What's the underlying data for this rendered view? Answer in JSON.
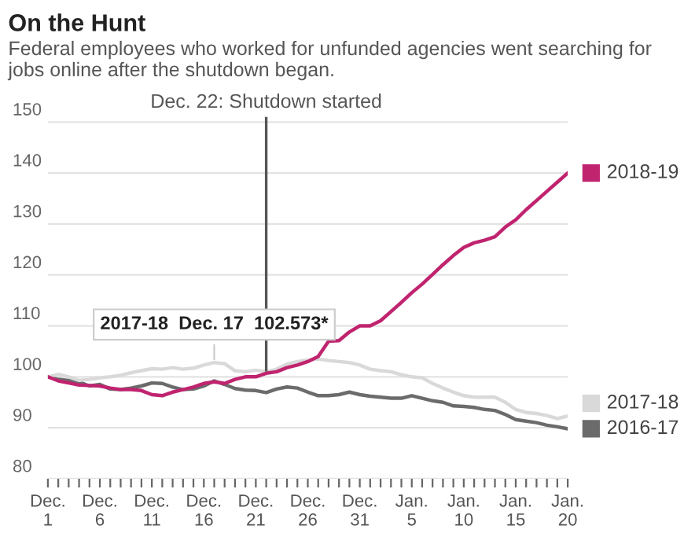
{
  "chart_data": {
    "type": "line",
    "title": "On the Hunt",
    "subtitle": "Federal employees who worked for unfunded agencies went searching for jobs online after the shutdown began.",
    "x": [
      "2018-12-01",
      "2018-12-02",
      "2018-12-03",
      "2018-12-04",
      "2018-12-05",
      "2018-12-06",
      "2018-12-07",
      "2018-12-08",
      "2018-12-09",
      "2018-12-10",
      "2018-12-11",
      "2018-12-12",
      "2018-12-13",
      "2018-12-14",
      "2018-12-15",
      "2018-12-16",
      "2018-12-17",
      "2018-12-18",
      "2018-12-19",
      "2018-12-20",
      "2018-12-21",
      "2018-12-22",
      "2018-12-23",
      "2018-12-24",
      "2018-12-25",
      "2018-12-26",
      "2018-12-27",
      "2018-12-28",
      "2018-12-29",
      "2018-12-30",
      "2018-12-31",
      "2019-01-01",
      "2019-01-02",
      "2019-01-03",
      "2019-01-04",
      "2019-01-05",
      "2019-01-06",
      "2019-01-07",
      "2019-01-08",
      "2019-01-09",
      "2019-01-10",
      "2019-01-11",
      "2019-01-12",
      "2019-01-13",
      "2019-01-14",
      "2019-01-15",
      "2019-01-16",
      "2019-01-17",
      "2019-01-18",
      "2019-01-19",
      "2019-01-20"
    ],
    "series": [
      {
        "name": "2018-19",
        "color": "#c0246f",
        "values": [
          100,
          99.2,
          98.8,
          98.4,
          98.3,
          98.2,
          97.8,
          97.5,
          97.5,
          97.3,
          96.5,
          96.3,
          97,
          97.5,
          98,
          98.7,
          99,
          98.7,
          99.5,
          100,
          100,
          100.7,
          101,
          101.8,
          102.3,
          103,
          104,
          107,
          107.1,
          108.8,
          110,
          110,
          111,
          112.8,
          114.6,
          116.5,
          118.2,
          120.1,
          122,
          123.8,
          125.4,
          126.3,
          126.8,
          127.5,
          129.4,
          130.8,
          132.8,
          134.6,
          136.4,
          138.2,
          140
        ]
      },
      {
        "name": "2017-18",
        "color": "#d9d9d9",
        "values": [
          100,
          100.5,
          100,
          99.3,
          99.5,
          99.8,
          100,
          100.3,
          100.8,
          101.2,
          101.6,
          101.5,
          101.8,
          101.5,
          101.7,
          102.3,
          102.8,
          102.573,
          101.2,
          101,
          101.3,
          101,
          101.5,
          102.5,
          103,
          103.3,
          103.5,
          103.2,
          103,
          102.8,
          102.3,
          101.5,
          101.2,
          101,
          100.4,
          100,
          99.8,
          98.7,
          97.8,
          97,
          96.3,
          96,
          96,
          96,
          95,
          93.6,
          93,
          92.8,
          92.4,
          91.8,
          92.3
        ]
      },
      {
        "name": "2016-17",
        "color": "#6b6b6b",
        "values": [
          100,
          99.5,
          99.3,
          99,
          98.2,
          98.5,
          97.6,
          97.5,
          97.8,
          98.2,
          98.8,
          98.7,
          98,
          97.5,
          97.6,
          98.2,
          99.2,
          98.5,
          97.7,
          97.4,
          97.3,
          96.9,
          97.6,
          98,
          97.8,
          97,
          96.3,
          96.3,
          96.5,
          97,
          96.5,
          96.2,
          96,
          95.8,
          95.8,
          96.3,
          95.8,
          95.3,
          95,
          94.3,
          94.2,
          94,
          93.6,
          93.4,
          92.6,
          91.6,
          91.3,
          91,
          90.5,
          90.2,
          89.8
        ]
      }
    ],
    "xlim": [
      "2018-12-01",
      "2019-01-20"
    ],
    "xticks": [
      {
        "value": "2018-12-01",
        "label": "Dec.\n1"
      },
      {
        "value": "2018-12-02",
        "label": null
      },
      {
        "value": "2018-12-03",
        "label": null
      },
      {
        "value": "2018-12-04",
        "label": null
      },
      {
        "value": "2018-12-05",
        "label": null
      },
      {
        "value": "2018-12-06",
        "label": "Dec.\n6"
      },
      {
        "value": "2018-12-07",
        "label": null
      },
      {
        "value": "2018-12-08",
        "label": null
      },
      {
        "value": "2018-12-09",
        "label": null
      },
      {
        "value": "2018-12-10",
        "label": null
      },
      {
        "value": "2018-12-11",
        "label": "Dec.\n11"
      },
      {
        "value": "2018-12-12",
        "label": null
      },
      {
        "value": "2018-12-13",
        "label": null
      },
      {
        "value": "2018-12-14",
        "label": null
      },
      {
        "value": "2018-12-15",
        "label": null
      },
      {
        "value": "2018-12-16",
        "label": "Dec.\n16"
      },
      {
        "value": "2018-12-17",
        "label": null
      },
      {
        "value": "2018-12-18",
        "label": null
      },
      {
        "value": "2018-12-19",
        "label": null
      },
      {
        "value": "2018-12-20",
        "label": null
      },
      {
        "value": "2018-12-21",
        "label": "Dec.\n21"
      },
      {
        "value": "2018-12-22",
        "label": null
      },
      {
        "value": "2018-12-23",
        "label": null
      },
      {
        "value": "2018-12-24",
        "label": null
      },
      {
        "value": "2018-12-25",
        "label": null
      },
      {
        "value": "2018-12-26",
        "label": "Dec.\n26"
      },
      {
        "value": "2018-12-27",
        "label": null
      },
      {
        "value": "2018-12-28",
        "label": null
      },
      {
        "value": "2018-12-29",
        "label": null
      },
      {
        "value": "2018-12-30",
        "label": null
      },
      {
        "value": "2018-12-31",
        "label": "Dec.\n31"
      },
      {
        "value": "2019-01-01",
        "label": null
      },
      {
        "value": "2019-01-02",
        "label": null
      },
      {
        "value": "2019-01-03",
        "label": null
      },
      {
        "value": "2019-01-04",
        "label": null
      },
      {
        "value": "2019-01-05",
        "label": "Jan.\n5"
      },
      {
        "value": "2019-01-06",
        "label": null
      },
      {
        "value": "2019-01-07",
        "label": null
      },
      {
        "value": "2019-01-08",
        "label": null
      },
      {
        "value": "2019-01-09",
        "label": null
      },
      {
        "value": "2019-01-10",
        "label": "Jan.\n10"
      },
      {
        "value": "2019-01-11",
        "label": null
      },
      {
        "value": "2019-01-12",
        "label": null
      },
      {
        "value": "2019-01-13",
        "label": null
      },
      {
        "value": "2019-01-14",
        "label": null
      },
      {
        "value": "2019-01-15",
        "label": "Jan.\n15"
      },
      {
        "value": "2019-01-16",
        "label": null
      },
      {
        "value": "2019-01-17",
        "label": null
      },
      {
        "value": "2019-01-18",
        "label": null
      },
      {
        "value": "2019-01-19",
        "label": null
      },
      {
        "value": "2019-01-20",
        "label": "Jan.\n20"
      }
    ],
    "ylim": [
      80,
      151
    ],
    "yticks": [
      80,
      90,
      100,
      110,
      120,
      130,
      140,
      150
    ],
    "grid": "y",
    "legend": "right",
    "line_style": "solid",
    "marker": "none",
    "ref_lines": [
      {
        "axis": "x",
        "value": "2018-12-22",
        "label": "Dec. 22: Shutdown started",
        "color": "#555555"
      }
    ],
    "annotations": [
      {
        "text": "2017-18  Dec. 17  102.573*",
        "x": "2018-12-17",
        "y": 102.573
      }
    ]
  }
}
